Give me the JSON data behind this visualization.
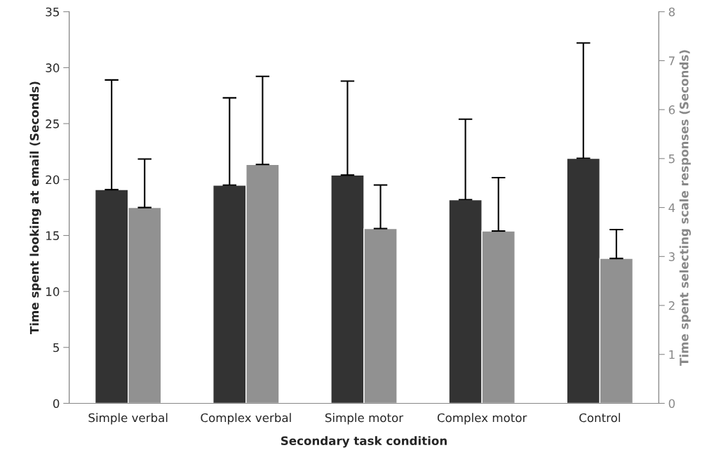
{
  "chart_data": {
    "type": "bar",
    "xlabel": "Secondary task condition",
    "ylabel": "Time spent looking at email (Seconds)",
    "y2label": "Time spent selecting scale responses (Seconds)",
    "categories": [
      "Simple verbal",
      "Complex verbal",
      "Simple motor",
      "Complex motor",
      "Control"
    ],
    "series": [
      {
        "color": "#333333",
        "values": [
          19.1,
          19.5,
          20.4,
          18.2,
          21.9
        ],
        "errors": [
          [
            19.1,
            28.9
          ],
          [
            19.5,
            27.3
          ],
          [
            20.4,
            28.8
          ],
          [
            18.2,
            25.4
          ],
          [
            21.9,
            32.2
          ]
        ]
      },
      {
        "color": "#919191",
        "axis": "y2",
        "values": [
          4.0,
          4.88,
          3.57,
          3.52,
          2.96
        ],
        "errors": [
          [
            4.0,
            4.99
          ],
          [
            4.88,
            6.68
          ],
          [
            3.57,
            4.46
          ],
          [
            3.52,
            4.61
          ],
          [
            2.96,
            3.55
          ]
        ]
      }
    ],
    "ylim": [
      0,
      35
    ],
    "yticks": [
      0,
      5,
      10,
      15,
      20,
      25,
      30,
      35
    ],
    "y2lim": [
      0,
      8
    ],
    "y2ticks": [
      0,
      1,
      2,
      3,
      4,
      5,
      6,
      7,
      8
    ],
    "grid": false,
    "legend": false
  }
}
